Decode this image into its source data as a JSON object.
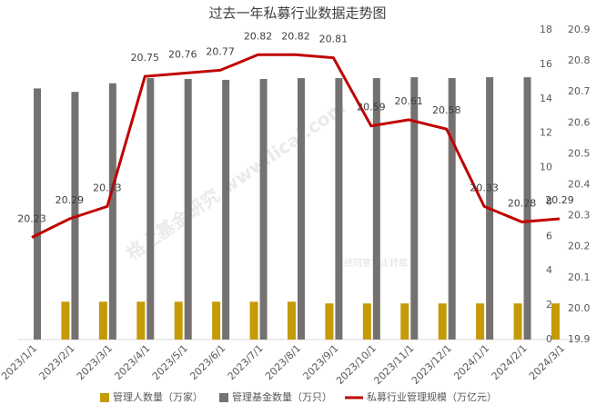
{
  "chart_data": {
    "type": "bar_line",
    "title": "过去一年私募行业数据走势图",
    "watermarks": [
      "格上基金研究 www.licai.com",
      "未经同意禁止转载"
    ],
    "categories": [
      "2023/1/1",
      "2023/2/1",
      "2023/3/1",
      "2023/4/1",
      "2023/5/1",
      "2023/6/1",
      "2023/7/1",
      "2023/8/1",
      "2023/9/1",
      "2023/10/1",
      "2023/11/1",
      "2023/12/1",
      "2024/1/1",
      "2024/2/1",
      "2024/3/1"
    ],
    "series": [
      {
        "name": "管理人数量（万家）",
        "color": "#c49a06",
        "kind": "bar",
        "axis": "y",
        "values": [
          null,
          2.2,
          2.2,
          2.2,
          2.2,
          2.2,
          2.2,
          2.2,
          2.1,
          2.1,
          2.1,
          2.1,
          2.1,
          2.1,
          2.1
        ]
      },
      {
        "name": "管理基金数量（万只）",
        "color": "#767171",
        "kind": "bar",
        "axis": "y",
        "values": [
          14.6,
          14.4,
          14.9,
          15.2,
          15.15,
          15.1,
          15.15,
          15.2,
          15.2,
          15.2,
          15.25,
          15.2,
          15.25,
          15.25,
          null
        ]
      },
      {
        "name": "私募行业管理规模（万亿元）",
        "color": "#c00000",
        "kind": "line",
        "axis": "y2",
        "values": [
          20.23,
          20.29,
          20.33,
          20.75,
          20.76,
          20.77,
          20.82,
          20.82,
          20.81,
          20.59,
          20.61,
          20.58,
          20.33,
          20.28,
          20.29
        ]
      }
    ],
    "ylim": [
      0,
      18
    ],
    "yticks": [
      0,
      2,
      4,
      6,
      8,
      10,
      12,
      14,
      16,
      18
    ],
    "y2lim": [
      19.9,
      20.9
    ],
    "y2ticks": [
      19.9,
      {
        "value": 20,
        "label": "20.0"
      },
      20.1,
      20.2,
      20.3,
      20.4,
      20.5,
      20.6,
      20.7,
      20.8,
      20.9
    ],
    "legend": "bottom"
  }
}
